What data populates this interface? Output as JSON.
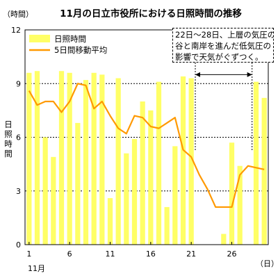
{
  "chart_data": {
    "type": "bar",
    "title": "11月の日立市役所における日照時間の推移",
    "ylabel_top": "（時間）",
    "ylabel": "日照時間",
    "xlabel": "（日）",
    "x_month_label": "11月",
    "ylim": [
      0,
      12
    ],
    "yticks": [
      "0",
      "3",
      "6",
      "9",
      "12"
    ],
    "xticks": [
      {
        "day": 1,
        "label": "1"
      },
      {
        "day": 6,
        "label": "6"
      },
      {
        "day": 11,
        "label": "11"
      },
      {
        "day": 16,
        "label": "16"
      },
      {
        "day": 21,
        "label": "21"
      },
      {
        "day": 26,
        "label": "26"
      }
    ],
    "grid": true,
    "legend_position": "top-left",
    "days": [
      1,
      2,
      3,
      4,
      5,
      6,
      7,
      8,
      9,
      10,
      11,
      12,
      13,
      14,
      15,
      16,
      17,
      18,
      19,
      20,
      21,
      22,
      23,
      24,
      25,
      26,
      27,
      28,
      29,
      30
    ],
    "series": [
      {
        "name": "日照時間",
        "type": "bar",
        "color": "#ffff66",
        "values": [
          9.6,
          9.7,
          6.0,
          4.9,
          9.7,
          9.6,
          6.8,
          9.2,
          9.6,
          9.5,
          2.6,
          9.3,
          5.1,
          5.9,
          8.0,
          7.5,
          9.1,
          2.1,
          5.5,
          9.4,
          9.3,
          0,
          0,
          0,
          0.6,
          5.7,
          4.4,
          0,
          9.1,
          8.2
        ]
      },
      {
        "name": "5日間移動平均",
        "type": "line",
        "color": "#ff9900",
        "values": [
          8.6,
          7.8,
          8.0,
          8.0,
          7.4,
          8.0,
          9.0,
          8.9,
          7.6,
          8.0,
          7.2,
          6.5,
          6.2,
          7.2,
          7.1,
          6.6,
          6.5,
          6.8,
          7.1,
          5.3,
          4.9,
          3.9,
          3.1,
          2.1,
          2.1,
          2.1,
          3.9,
          4.4,
          4.3,
          4.2
        ]
      }
    ],
    "annotation": {
      "lines": [
        "22日～28日、上層の気圧の",
        "谷と南岸を進んだ低気圧の",
        "影響で天気がぐずつく。"
      ],
      "range_start_day": 22,
      "range_end_day": 28,
      "arrow_y": 9.5
    }
  }
}
